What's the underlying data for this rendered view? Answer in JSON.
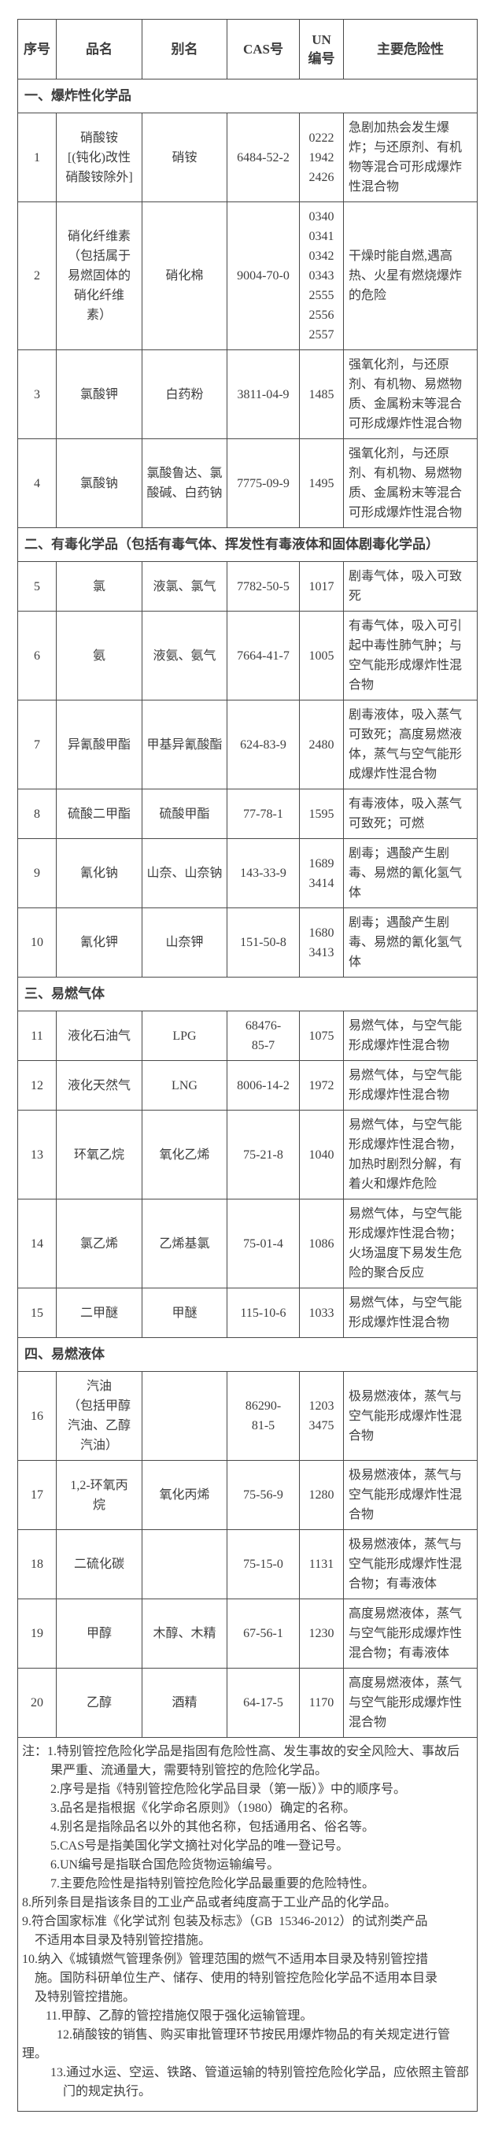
{
  "page": {
    "background": "#ffffff",
    "text_color": "#3e3e3e",
    "border_color": "#4a4a4a"
  },
  "table": {
    "columns": [
      {
        "key": "index",
        "label": "序号"
      },
      {
        "key": "name",
        "label": "品名"
      },
      {
        "key": "alias",
        "label": "别名"
      },
      {
        "key": "cas",
        "label": "CAS号"
      },
      {
        "key": "un",
        "label": "UN\n编号"
      },
      {
        "key": "hazard",
        "label": "主要危险性"
      }
    ],
    "sections": [
      {
        "title": "一、爆炸性化学品",
        "rows": [
          {
            "index": "1",
            "name": "硝酸铵\n[(钝化)改性\n硝酸铵除外]",
            "alias": "硝铵",
            "cas": "6484-52-2",
            "un": "0222\n1942\n2426",
            "hazard": "急剧加热会发生爆炸；与还原剂、有机物等混合可形成爆炸性混合物"
          },
          {
            "index": "2",
            "name": "硝化纤维素\n（包括属于\n易燃固体的\n硝化纤维\n素）",
            "alias": "硝化棉",
            "cas": "9004-70-0",
            "un": "0340\n0341\n0342\n0343\n2555\n2556\n2557",
            "hazard": "干燥时能自燃,遇高热、火星有燃烧爆炸的危险"
          },
          {
            "index": "3",
            "name": "氯酸钾",
            "alias": "白药粉",
            "cas": "3811-04-9",
            "un": "1485",
            "hazard": "强氧化剂，与还原剂、有机物、易燃物质、金属粉末等混合可形成爆炸性混合物"
          },
          {
            "index": "4",
            "name": "氯酸钠",
            "alias": "氯酸鲁达、氯酸碱、白药钠",
            "cas": "7775-09-9",
            "un": "1495",
            "hazard": "强氧化剂，与还原剂、有机物、易燃物质、金属粉末等混合可形成爆炸性混合物"
          }
        ]
      },
      {
        "title": "二、有毒化学品（包括有毒气体、挥发性有毒液体和固体剧毒化学品）",
        "rows": [
          {
            "index": "5",
            "name": "氯",
            "alias": "液氯、氯气",
            "cas": "7782-50-5",
            "un": "1017",
            "hazard": "剧毒气体，吸入可致死"
          },
          {
            "index": "6",
            "name": "氨",
            "alias": "液氨、氨气",
            "cas": "7664-41-7",
            "un": "1005",
            "hazard": "有毒气体，吸入可引起中毒性肺气肿；与空气能形成爆炸性混合物"
          },
          {
            "index": "7",
            "name": "异氰酸甲酯",
            "alias": "甲基异氰酸酯",
            "cas": "624-83-9",
            "un": "2480",
            "hazard": "剧毒液体，吸入蒸气可致死；高度易燃液体，蒸气与空气能形成爆炸性混合物"
          },
          {
            "index": "8",
            "name": "硫酸二甲酯",
            "alias": "硫酸甲酯",
            "cas": "77-78-1",
            "un": "1595",
            "hazard": "有毒液体，吸入蒸气可致死；可燃"
          },
          {
            "index": "9",
            "name": "氰化钠",
            "alias": "山奈、山奈钠",
            "cas": "143-33-9",
            "un": "1689\n3414",
            "hazard": "剧毒；遇酸产生剧毒、易燃的氰化氢气体"
          },
          {
            "index": "10",
            "name": "氰化钾",
            "alias": "山奈钾",
            "cas": "151-50-8",
            "un": "1680\n3413",
            "hazard": "剧毒；遇酸产生剧毒、易燃的氰化氢气体"
          }
        ]
      },
      {
        "title": "三、易燃气体",
        "rows": [
          {
            "index": "11",
            "name": "液化石油气",
            "alias": "LPG",
            "cas": "68476-\n85-7",
            "un": "1075",
            "hazard": "易燃气体，与空气能形成爆炸性混合物"
          },
          {
            "index": "12",
            "name": "液化天然气",
            "alias": "LNG",
            "cas": "8006-14-2",
            "un": "1972",
            "hazard": "易燃气体，与空气能形成爆炸性混合物"
          },
          {
            "index": "13",
            "name": "环氧乙烷",
            "alias": "氧化乙烯",
            "cas": "75-21-8",
            "un": "1040",
            "hazard": "易燃气体，与空气能形成爆炸性混合物，加热时剧烈分解，有着火和爆炸危险"
          },
          {
            "index": "14",
            "name": "氯乙烯",
            "alias": "乙烯基氯",
            "cas": "75-01-4",
            "un": "1086",
            "hazard": "易燃气体，与空气能形成爆炸性混合物；火场温度下易发生危险的聚合反应"
          },
          {
            "index": "15",
            "name": "二甲醚",
            "alias": "甲醚",
            "cas": "115-10-6",
            "un": "1033",
            "hazard": "易燃气体，与空气能形成爆炸性混合物"
          }
        ]
      },
      {
        "title": "四、易燃液体",
        "rows": [
          {
            "index": "16",
            "name": "汽油\n（包括甲醇\n汽油、乙醇\n汽油）",
            "alias": "",
            "cas": "86290-\n81-5",
            "un": "1203\n3475",
            "hazard": "极易燃液体，蒸气与空气能形成爆炸性混合物"
          },
          {
            "index": "17",
            "name": "1,2-环氧丙\n烷",
            "alias": "氧化丙烯",
            "cas": "75-56-9",
            "un": "1280",
            "hazard": "极易燃液体，蒸气与空气能形成爆炸性混合物"
          },
          {
            "index": "18",
            "name": "二硫化碳",
            "alias": "",
            "cas": "75-15-0",
            "un": "1131",
            "hazard": "极易燃液体，蒸气与空气能形成爆炸性混合物；有毒液体"
          },
          {
            "index": "19",
            "name": "甲醇",
            "alias": "木醇、木精",
            "cas": "67-56-1",
            "un": "1230",
            "hazard": "高度易燃液体，蒸气与空气能形成爆炸性混合物；有毒液体"
          },
          {
            "index": "20",
            "name": "乙醇",
            "alias": "酒精",
            "cas": "64-17-5",
            "un": "1170",
            "hazard": "高度易燃液体，蒸气与空气能形成爆炸性混合物"
          }
        ]
      }
    ],
    "notes_lines": [
      {
        "indent": 0,
        "text": "注：1.特别管控危险化学品是指固有危险性高、发生事故的安全风险大、事故后"
      },
      {
        "indent": 36,
        "text": "果严重、流通量大，需要特别管控的危险化学品。"
      },
      {
        "indent": 36,
        "text": "2.序号是指《特别管控危险化学品目录（第一版）》中的顺序号。"
      },
      {
        "indent": 36,
        "text": "3.品名是指根据《化学命名原则》（1980）确定的名称。"
      },
      {
        "indent": 36,
        "text": "4.别名是指除品名以外的其他名称，包括通用名、俗名等。"
      },
      {
        "indent": 36,
        "text": "5.CAS号是指美国化学文摘社对化学品的唯一登记号。"
      },
      {
        "indent": 36,
        "text": "6.UN编号是指联合国危险货物运输编号。"
      },
      {
        "indent": 36,
        "text": "7.主要危险性是指特别管控危险化学品最重要的危险特性。"
      },
      {
        "indent": 0,
        "text": "8.所列条目是指该条目的工业产品或者纯度高于工业产品的化学品。"
      },
      {
        "indent": 0,
        "text": "9.符合国家标准《化学试剂 包装及标志》（GB  15346-2012）的试剂类产品"
      },
      {
        "indent": 16,
        "text": "不适用本目录及特别管控措施。"
      },
      {
        "indent": 0,
        "text": "10.纳入《城镇燃气管理条例》管理范围的燃气不适用本目录及特别管控措"
      },
      {
        "indent": 16,
        "text": "施。国防科研单位生产、储存、使用的特别管控危险化学品不适用本目录"
      },
      {
        "indent": 16,
        "text": "及特别管控措施。"
      },
      {
        "indent": 30,
        "text": "11.甲醇、乙醇的管控措施仅限于强化运输管理。"
      },
      {
        "indent": 44,
        "text": "12.硝酸铵的销售、购买审批管理环节按民用爆炸物品的有关规定进行管"
      },
      {
        "indent": 0,
        "text": "理。"
      },
      {
        "indent": 36,
        "text": "13.通过水运、空运、铁路、管道运输的特别管控危险化学品，应依照主管部"
      },
      {
        "indent": 52,
        "text": "门的规定执行。"
      }
    ]
  }
}
